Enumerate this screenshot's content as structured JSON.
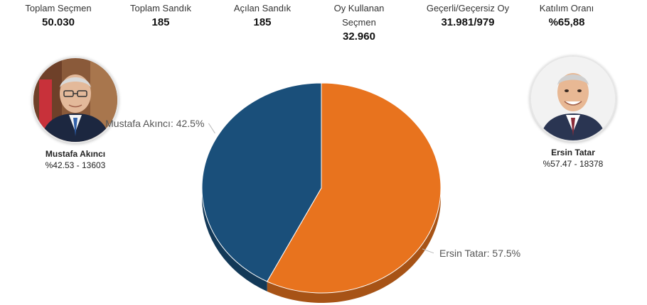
{
  "stats": [
    {
      "label": "Toplam Seçmen",
      "value": "50.030"
    },
    {
      "label": "Toplam Sandık",
      "value": "185"
    },
    {
      "label": "Açılan Sandık",
      "value": "185"
    },
    {
      "label": "Oy Kullanan Seçmen",
      "value": "32.960"
    },
    {
      "label": "Geçerli/Geçersiz Oy",
      "value": "31.981/979"
    },
    {
      "label": "Katılım Oranı",
      "value": "%65,88"
    }
  ],
  "candidates": {
    "left": {
      "name": "Mustafa Akıncı",
      "result": "%42.53 - 13603"
    },
    "right": {
      "name": "Ersin Tatar",
      "result": "%57.47 - 18378"
    }
  },
  "colors": {
    "akinci": "#1a4f7a",
    "tatar": "#e8731e"
  },
  "chart_data": {
    "type": "pie",
    "slices": [
      {
        "name": "Ersin Tatar",
        "value": 57.5,
        "label": "Ersin Tatar: 57.5%",
        "color": "#e8731e"
      },
      {
        "name": "Mustafa Akıncı",
        "value": 42.5,
        "label": "Mustafa Akıncı: 42.5%",
        "color": "#1a4f7a"
      }
    ]
  }
}
